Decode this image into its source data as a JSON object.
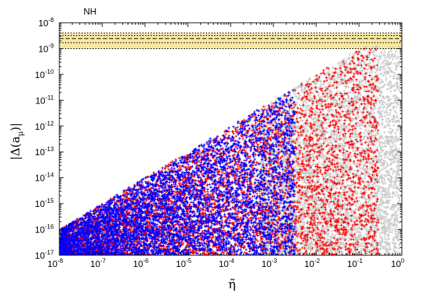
{
  "chart_data": {
    "type": "scatter",
    "title": "NH",
    "xlabel": "η̃",
    "ylabel": "|Δ(a_μ)|",
    "ylabel_parts": {
      "outer": "|Δ(a",
      "sub": "μ",
      "close": ")|"
    },
    "xscale": "log",
    "yscale": "log",
    "xlim": [
      1e-08,
      1
    ],
    "ylim": [
      1e-17,
      1e-08
    ],
    "grid": false,
    "legend": "none",
    "x_ticks": [
      {
        "base": "10",
        "exp": "-8"
      },
      {
        "base": "10",
        "exp": "-7"
      },
      {
        "base": "10",
        "exp": "-6"
      },
      {
        "base": "10",
        "exp": "-5"
      },
      {
        "base": "10",
        "exp": "-4"
      },
      {
        "base": "10",
        "exp": "-3"
      },
      {
        "base": "10",
        "exp": "-2"
      },
      {
        "base": "10",
        "exp": "-1"
      },
      {
        "base": "10",
        "exp": "0"
      }
    ],
    "y_ticks": [
      {
        "base": "10",
        "exp": "-17"
      },
      {
        "base": "10",
        "exp": "-16"
      },
      {
        "base": "10",
        "exp": "-15"
      },
      {
        "base": "10",
        "exp": "-14"
      },
      {
        "base": "10",
        "exp": "-13"
      },
      {
        "base": "10",
        "exp": "-12"
      },
      {
        "base": "10",
        "exp": "-11"
      },
      {
        "base": "10",
        "exp": "-10"
      },
      {
        "base": "10",
        "exp": "-9"
      },
      {
        "base": "10",
        "exp": "-8"
      }
    ],
    "band": {
      "outer": [
        1e-09,
        4e-09
      ],
      "inner": [
        1.7e-09,
        3.2e-09
      ],
      "central": 2.45e-09,
      "fill": "#f7e7a0",
      "line_color": "#000000"
    },
    "series": [
      {
        "color": "#c8c8c8",
        "marker": "+",
        "x_log_range": [
          -3.3,
          -0.05
        ],
        "envelope": "y <= 1e-8 * x",
        "y_log_min": -17,
        "y_log_max": -8.9,
        "density": 5200
      },
      {
        "color": "#ff0000",
        "marker": "+",
        "x_log_range": [
          -8.0,
          -0.55
        ],
        "envelope": "y <= 1e-8 * x",
        "y_log_min": -17,
        "y_log_max": -8.95,
        "density": 5200
      },
      {
        "color": "#0000ff",
        "marker": "+",
        "x_log_range": [
          -8.0,
          -2.5
        ],
        "envelope": "y <= 1e-8 * x",
        "y_log_min": -17,
        "y_log_max": -10.5,
        "density": 8200
      }
    ],
    "colors": {
      "axis": "#000000",
      "gray": "#c8c8c8",
      "red": "#ff0000",
      "blue": "#0000ff",
      "band": "#f7e7a0"
    }
  }
}
